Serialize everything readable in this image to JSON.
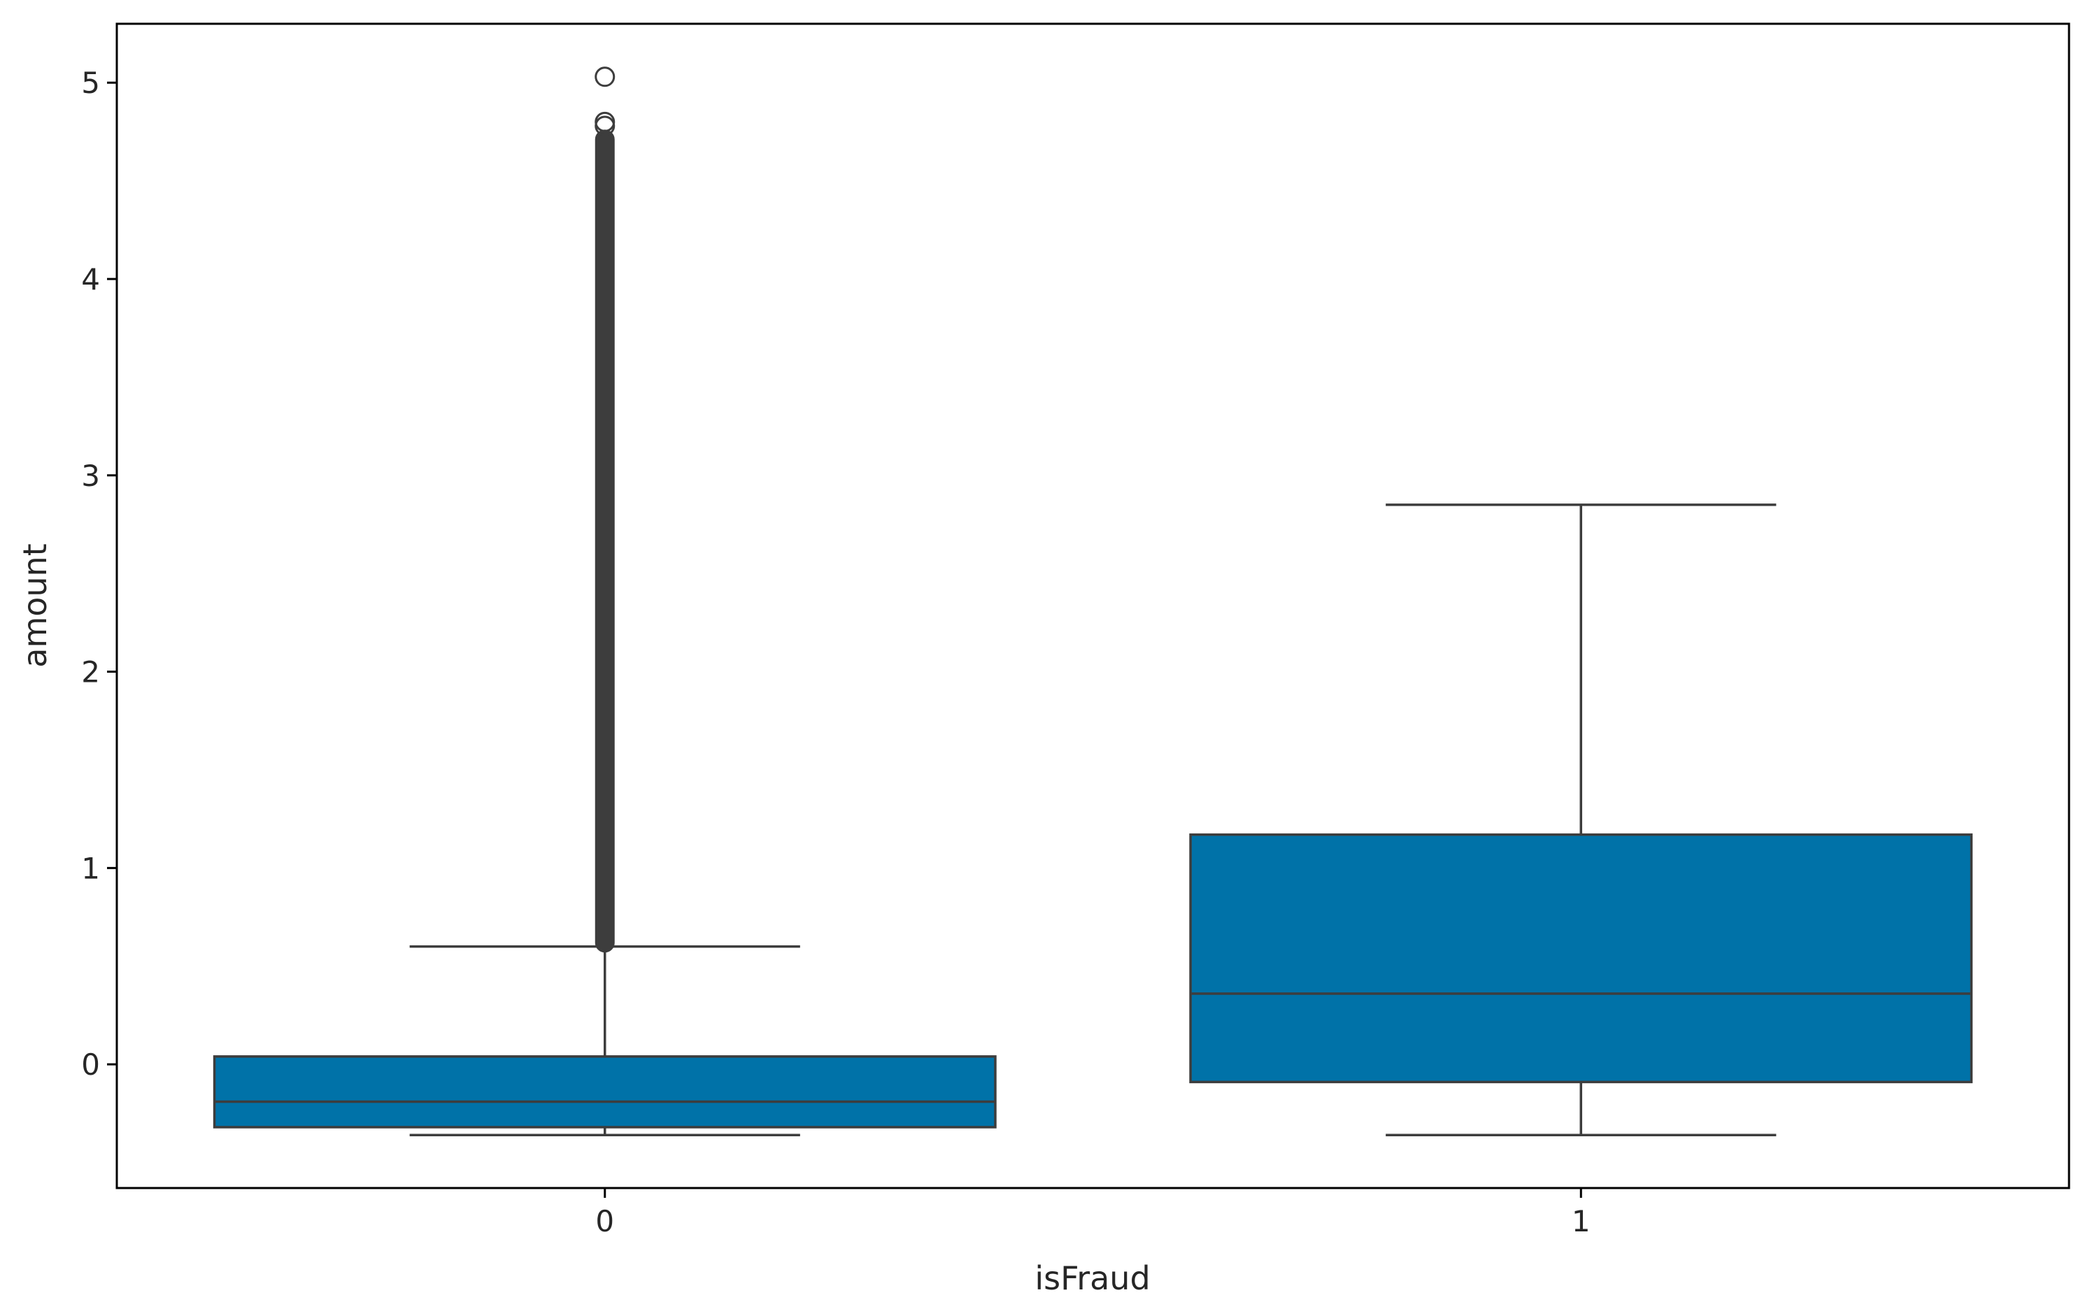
{
  "chart_data": {
    "type": "box",
    "title": "",
    "xlabel": "isFraud",
    "ylabel": "amount",
    "categories": [
      "0",
      "1"
    ],
    "ylim": [
      -0.63,
      5.3
    ],
    "yticks": [
      "0",
      "1",
      "2",
      "3",
      "4",
      "5"
    ],
    "grid": false,
    "legend": "none",
    "box_color": "#0072a8",
    "line_color": "#3d3d3d",
    "boxes": [
      {
        "category": "0",
        "whisker_low": -0.36,
        "q1": -0.32,
        "median": -0.19,
        "q3": 0.04,
        "whisker_high": 0.6,
        "outliers_dense_range": [
          0.58,
          4.75
        ],
        "outliers_sparse": [
          4.78,
          4.8,
          5.03
        ]
      },
      {
        "category": "1",
        "whisker_low": -0.36,
        "q1": -0.09,
        "median": 0.36,
        "q3": 1.17,
        "whisker_high": 2.85,
        "outliers_dense_range": null,
        "outliers_sparse": []
      }
    ]
  }
}
